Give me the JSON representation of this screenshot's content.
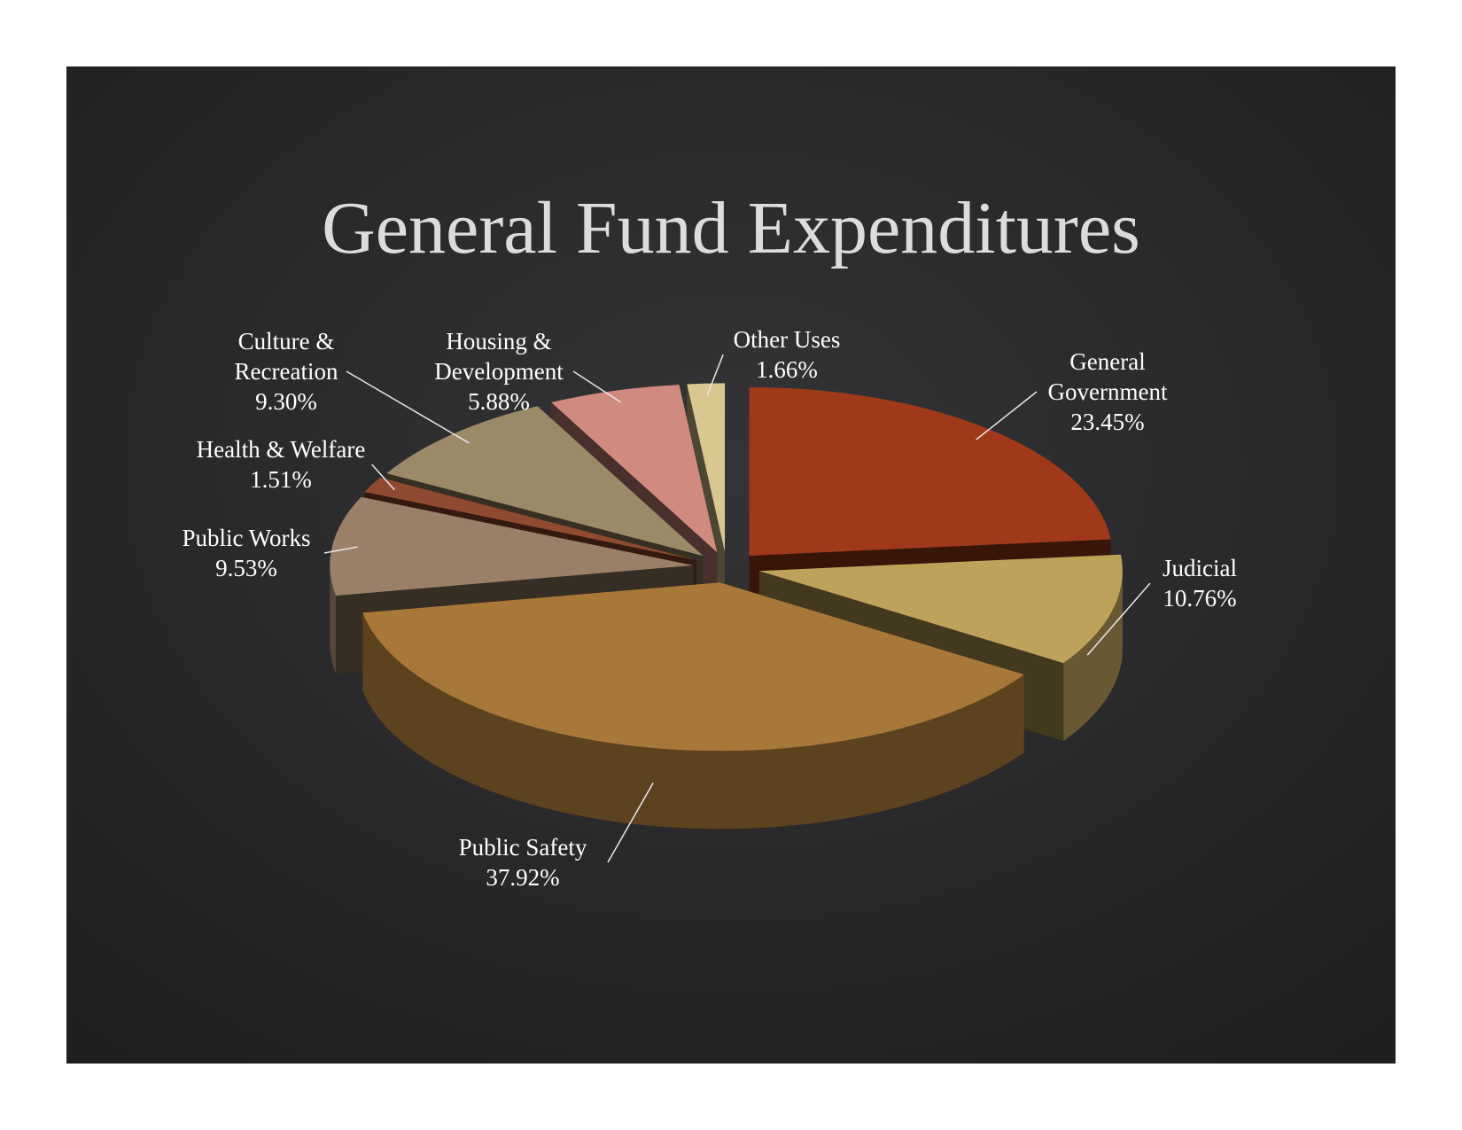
{
  "chart_data": {
    "type": "pie",
    "title": "General Fund Expenditures",
    "categories": [
      "General Government",
      "Judicial",
      "Public Safety",
      "Public Works",
      "Health & Welfare",
      "Culture & Recreation",
      "Housing & Development",
      "Other Uses"
    ],
    "values": [
      23.45,
      10.76,
      37.92,
      9.53,
      1.51,
      9.3,
      5.88,
      1.66
    ],
    "value_labels": [
      "23.45%",
      "10.76%",
      "37.92%",
      "9.53%",
      "1.51%",
      "9.30%",
      "5.88%",
      "1.66%"
    ],
    "colors": [
      "#a0391a",
      "#bfa25a",
      "#a87838",
      "#9a8068",
      "#8f4a30",
      "#9a8a68",
      "#d08a80",
      "#d8c890"
    ]
  }
}
